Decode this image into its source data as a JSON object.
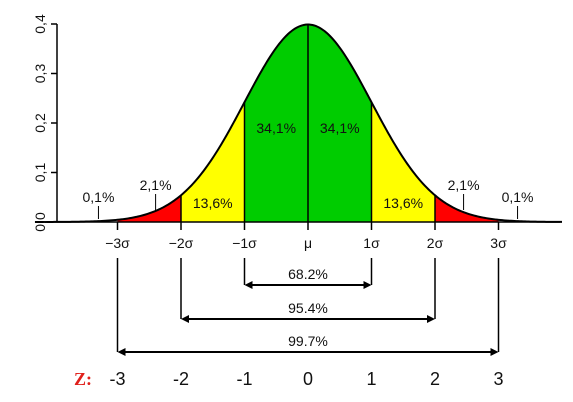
{
  "chart_data": {
    "type": "area",
    "title": "",
    "xlabel": "",
    "ylabel": "",
    "xlim": [
      -4.3,
      4.0
    ],
    "ylim": [
      0,
      0.4
    ],
    "y_ticks": [
      "0,0",
      "0,1",
      "0,2",
      "0,3",
      "0,4"
    ],
    "y_tick_values": [
      0,
      0.1,
      0.2,
      0.3,
      0.4
    ],
    "x_ticks": [
      {
        "z": -3,
        "label": "−3σ"
      },
      {
        "z": -2,
        "label": "−2σ"
      },
      {
        "z": -1,
        "label": "−1σ"
      },
      {
        "z": 0,
        "label": "μ"
      },
      {
        "z": 1,
        "label": "1σ"
      },
      {
        "z": 2,
        "label": "2σ"
      },
      {
        "z": 3,
        "label": "3σ"
      }
    ],
    "regions": [
      {
        "from": -3,
        "to": -2,
        "color": "#ff0000",
        "label": "2,1%"
      },
      {
        "from": -2,
        "to": -1,
        "color": "#ffff00",
        "label": "13,6%"
      },
      {
        "from": -1,
        "to": 0,
        "color": "#00cc00",
        "label": "34,1%"
      },
      {
        "from": 0,
        "to": 1,
        "color": "#00cc00",
        "label": "34,1%"
      },
      {
        "from": 1,
        "to": 2,
        "color": "#ffff00",
        "label": "13,6%"
      },
      {
        "from": 2,
        "to": 3,
        "color": "#ff0000",
        "label": "2,1%"
      }
    ],
    "tail_labels": [
      "0,1%",
      "0,1%"
    ],
    "ranges": [
      {
        "from": -1,
        "to": 1,
        "label": "68.2%"
      },
      {
        "from": -2,
        "to": 2,
        "label": "95.4%"
      },
      {
        "from": -3,
        "to": 3,
        "label": "99.7%"
      }
    ],
    "z_label": "Z:",
    "z_values": [
      "-3",
      "-2",
      "-1",
      "0",
      "1",
      "2",
      "3"
    ]
  }
}
